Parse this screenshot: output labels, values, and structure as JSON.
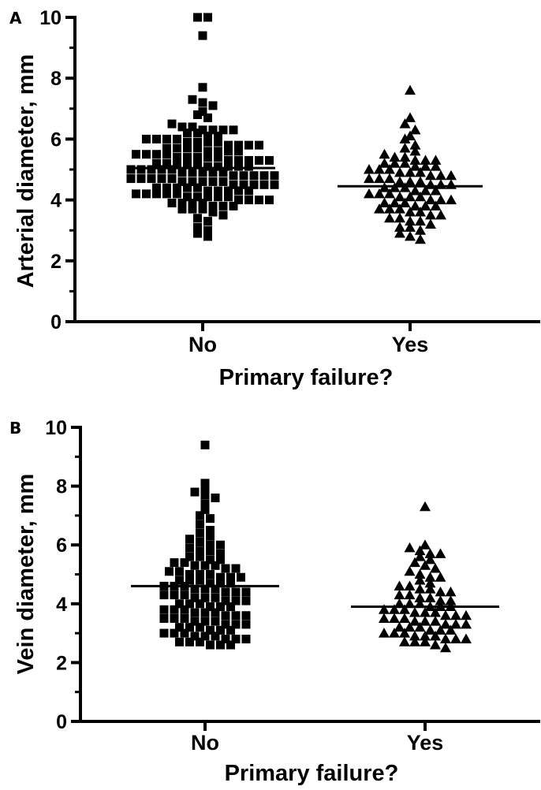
{
  "chart_data": [
    {
      "type": "scatter",
      "panel_label": "A",
      "ylabel": "Arterial diameter, mm",
      "xlabel": "Primary failure?",
      "ylim": [
        0,
        10
      ],
      "yticks": [
        "0",
        "2",
        "4",
        "6",
        "8",
        "10"
      ],
      "categories": [
        "No",
        "Yes"
      ],
      "series": [
        {
          "category": "No",
          "marker": "square",
          "mean": 5.05,
          "values": [
            10.0,
            10.0,
            9.4,
            7.7,
            7.3,
            7.2,
            7.1,
            6.9,
            6.8,
            6.7,
            6.5,
            6.4,
            6.4,
            6.3,
            6.3,
            6.3,
            6.3,
            6.2,
            6.2,
            6.1,
            6.1,
            6.0,
            6.0,
            6.0,
            6.0,
            5.9,
            5.9,
            5.9,
            5.9,
            5.8,
            5.8,
            5.8,
            5.8,
            5.7,
            5.7,
            5.7,
            5.7,
            5.6,
            5.6,
            5.6,
            5.6,
            5.5,
            5.5,
            5.5,
            5.5,
            5.4,
            5.4,
            5.4,
            5.4,
            5.4,
            5.3,
            5.3,
            5.3,
            5.3,
            5.3,
            5.2,
            5.2,
            5.2,
            5.2,
            5.2,
            5.1,
            5.1,
            5.1,
            5.1,
            5.1,
            5.0,
            5.0,
            5.0,
            5.0,
            5.0,
            4.9,
            4.9,
            4.9,
            4.9,
            4.9,
            4.8,
            4.8,
            4.8,
            4.8,
            4.8,
            4.7,
            4.7,
            4.7,
            4.7,
            4.7,
            4.6,
            4.6,
            4.6,
            4.6,
            4.6,
            4.5,
            4.5,
            4.5,
            4.5,
            4.5,
            4.4,
            4.4,
            4.4,
            4.4,
            4.4,
            4.3,
            4.3,
            4.3,
            4.3,
            4.3,
            4.2,
            4.2,
            4.2,
            4.2,
            4.2,
            4.1,
            4.1,
            4.1,
            4.1,
            4.1,
            4.0,
            4.0,
            4.0,
            4.0,
            3.9,
            3.9,
            3.9,
            3.9,
            3.8,
            3.8,
            3.8,
            3.7,
            3.7,
            3.7,
            3.6,
            3.5,
            3.4,
            3.3,
            3.1,
            3.0,
            2.9,
            2.8
          ]
        },
        {
          "category": "Yes",
          "marker": "triangle",
          "mean": 4.45,
          "values": [
            7.6,
            6.7,
            6.5,
            6.3,
            6.1,
            6.0,
            5.8,
            5.7,
            5.6,
            5.5,
            5.4,
            5.4,
            5.3,
            5.3,
            5.3,
            5.2,
            5.2,
            5.2,
            5.1,
            5.1,
            5.1,
            5.0,
            5.0,
            5.0,
            4.9,
            4.9,
            4.9,
            4.8,
            4.8,
            4.8,
            4.7,
            4.7,
            4.7,
            4.6,
            4.6,
            4.6,
            4.5,
            4.5,
            4.5,
            4.4,
            4.4,
            4.4,
            4.3,
            4.3,
            4.3,
            4.2,
            4.2,
            4.2,
            4.1,
            4.1,
            4.1,
            4.0,
            4.0,
            4.0,
            3.9,
            3.9,
            3.9,
            3.8,
            3.8,
            3.8,
            3.7,
            3.7,
            3.7,
            3.6,
            3.6,
            3.5,
            3.5,
            3.4,
            3.4,
            3.3,
            3.3,
            3.2,
            3.1,
            3.1,
            3.0,
            2.9,
            2.8,
            2.7
          ]
        }
      ]
    },
    {
      "type": "scatter",
      "panel_label": "B",
      "ylabel": "Vein diameter, mm",
      "xlabel": "Primary failure?",
      "ylim": [
        0,
        10
      ],
      "yticks": [
        "0",
        "2",
        "4",
        "6",
        "8",
        "10"
      ],
      "categories": [
        "No",
        "Yes"
      ],
      "series": [
        {
          "category": "No",
          "marker": "square",
          "mean": 4.6,
          "values": [
            9.4,
            8.1,
            7.9,
            7.8,
            7.7,
            7.6,
            7.4,
            7.2,
            7.0,
            6.9,
            6.7,
            6.5,
            6.4,
            6.3,
            6.2,
            6.1,
            6.0,
            6.0,
            5.9,
            5.8,
            5.8,
            5.7,
            5.6,
            5.6,
            5.5,
            5.5,
            5.4,
            5.4,
            5.3,
            5.3,
            5.3,
            5.2,
            5.2,
            5.1,
            5.1,
            5.0,
            5.0,
            5.0,
            4.9,
            4.9,
            4.9,
            4.8,
            4.8,
            4.8,
            4.7,
            4.7,
            4.7,
            4.6,
            4.6,
            4.6,
            4.5,
            4.5,
            4.5,
            4.4,
            4.4,
            4.4,
            4.3,
            4.3,
            4.3,
            4.2,
            4.2,
            4.2,
            4.1,
            4.1,
            4.1,
            4.0,
            4.0,
            4.0,
            3.9,
            3.9,
            3.9,
            3.8,
            3.8,
            3.8,
            3.7,
            3.7,
            3.7,
            3.6,
            3.6,
            3.6,
            3.5,
            3.5,
            3.5,
            3.4,
            3.4,
            3.4,
            3.3,
            3.3,
            3.3,
            3.2,
            3.2,
            3.2,
            3.1,
            3.1,
            3.1,
            3.0,
            3.0,
            3.0,
            2.9,
            2.9,
            2.9,
            2.8,
            2.8,
            2.8,
            2.7,
            2.7,
            2.7,
            2.6,
            2.6,
            2.6
          ]
        },
        {
          "category": "Yes",
          "marker": "triangle",
          "mean": 3.9,
          "values": [
            7.3,
            6.0,
            5.9,
            5.8,
            5.7,
            5.7,
            5.6,
            5.5,
            5.4,
            5.3,
            5.2,
            5.1,
            5.0,
            4.9,
            4.9,
            4.8,
            4.7,
            4.6,
            4.6,
            4.5,
            4.5,
            4.4,
            4.4,
            4.3,
            4.3,
            4.2,
            4.2,
            4.1,
            4.1,
            4.0,
            4.0,
            4.0,
            3.9,
            3.9,
            3.9,
            3.8,
            3.8,
            3.8,
            3.7,
            3.7,
            3.7,
            3.6,
            3.6,
            3.6,
            3.5,
            3.5,
            3.5,
            3.4,
            3.4,
            3.4,
            3.3,
            3.3,
            3.3,
            3.2,
            3.2,
            3.2,
            3.1,
            3.1,
            3.1,
            3.0,
            3.0,
            3.0,
            2.9,
            2.9,
            2.9,
            2.8,
            2.8,
            2.8,
            2.7,
            2.7,
            2.7,
            2.6,
            2.5
          ]
        }
      ]
    }
  ]
}
